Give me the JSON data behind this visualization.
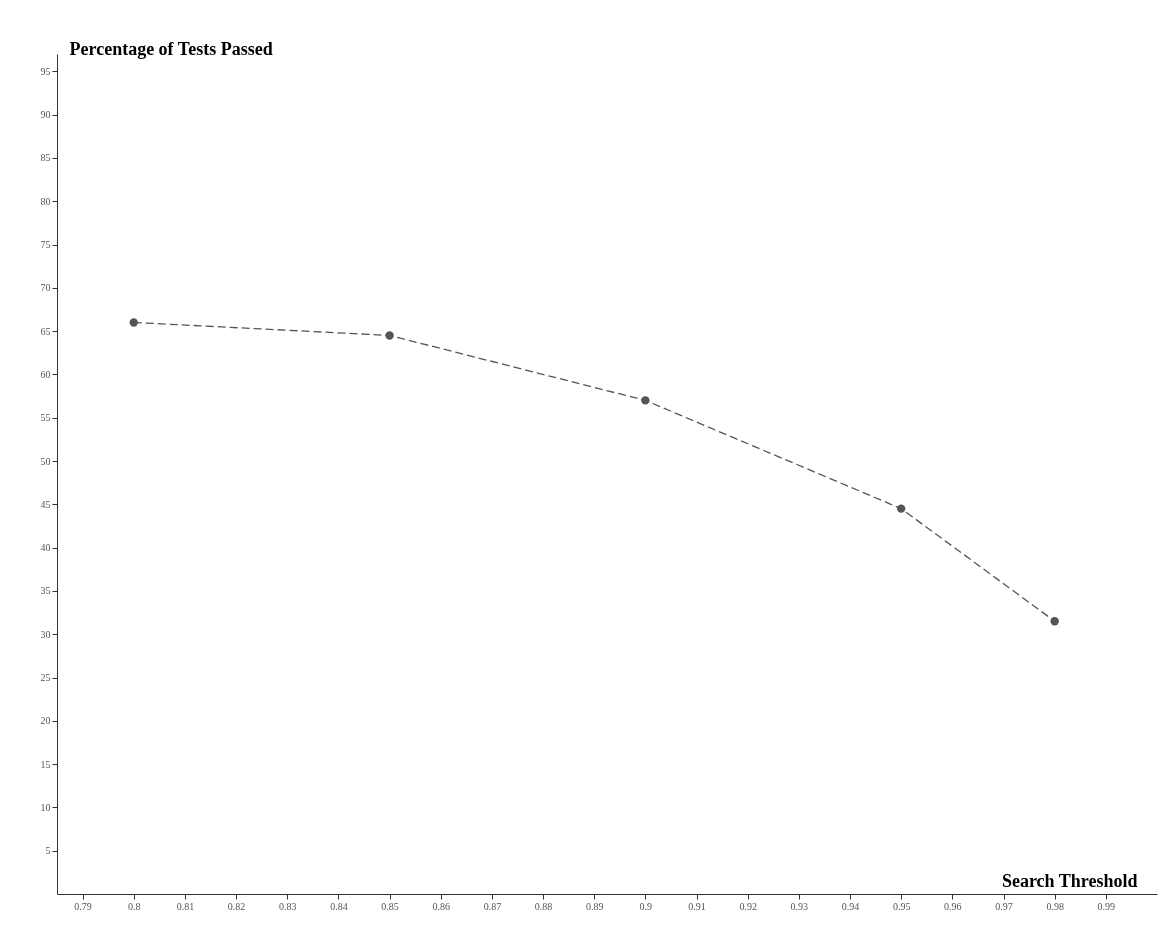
{
  "chart_data": {
    "type": "line",
    "xlabel": "Search Threshold",
    "ylabel": "Percentage of Tests Passed",
    "x": [
      0.8,
      0.85,
      0.9,
      0.95,
      0.98
    ],
    "series": [
      {
        "color": "#555555",
        "values": [
          66,
          64.5,
          57,
          44.5,
          31.5
        ]
      }
    ],
    "xlim": [
      0.785,
      1.0
    ],
    "xticks": [
      0.79,
      0.8,
      0.81,
      0.82,
      0.83,
      0.84,
      0.85,
      0.86,
      0.87,
      0.88,
      0.89,
      0.9,
      0.91,
      0.92,
      0.93,
      0.94,
      0.95,
      0.96,
      0.97,
      0.98,
      0.99
    ],
    "ylim": [
      0,
      97
    ],
    "yticks": [
      5,
      10,
      15,
      20,
      25,
      30,
      35,
      40,
      45,
      50,
      55,
      60,
      65,
      70,
      75,
      80,
      85,
      90,
      95
    ],
    "grid": false,
    "marker": "circle",
    "line_style": "dashed"
  }
}
